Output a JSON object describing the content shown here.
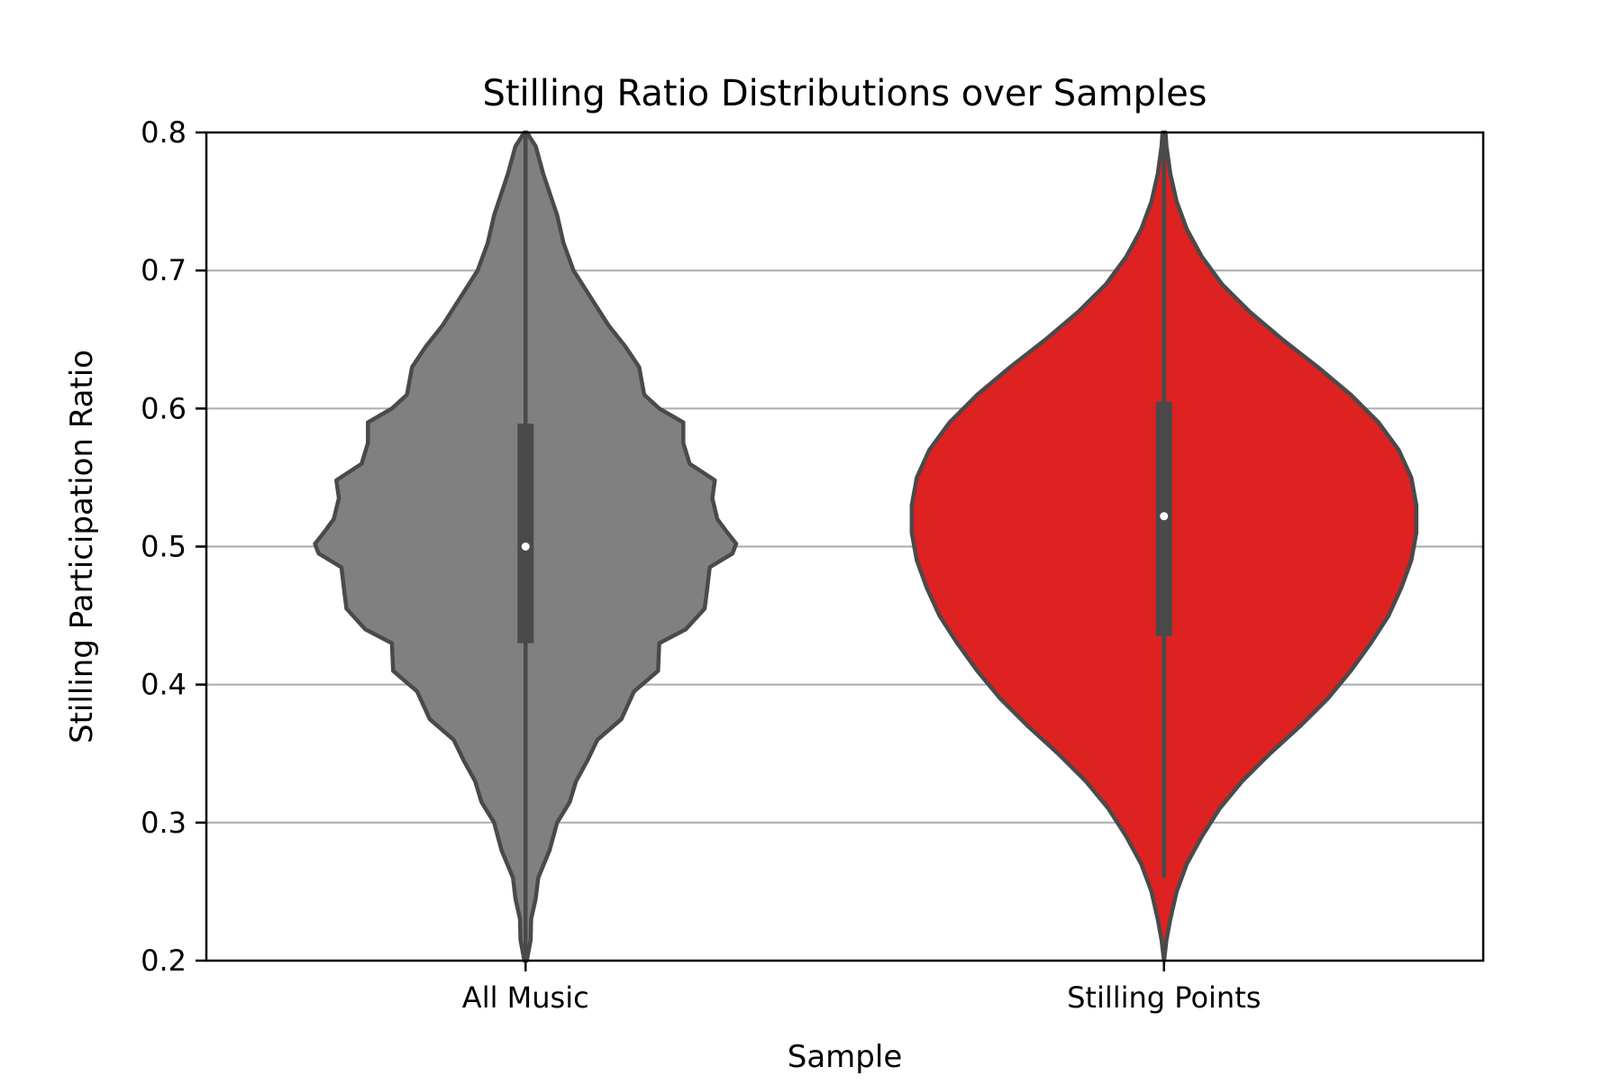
{
  "chart_data": {
    "type": "violin",
    "title": "Stilling Ratio Distributions over Samples",
    "xlabel": "Sample",
    "ylabel": "Stilling Participation Ratio",
    "ylim": [
      0.2,
      0.8
    ],
    "yticks": [
      0.2,
      0.3,
      0.4,
      0.5,
      0.6,
      0.7,
      0.8
    ],
    "ytick_labels": [
      "0.2",
      "0.3",
      "0.4",
      "0.5",
      "0.6",
      "0.7",
      "0.8"
    ],
    "grid": "horizontal",
    "categories": [
      "All Music",
      "Stilling Points"
    ],
    "series": [
      {
        "category": "All Music",
        "color": "#808080",
        "median": 0.5,
        "q1": 0.43,
        "q3": 0.589,
        "whisker_low": 0.2,
        "whisker_high": 0.8,
        "density_profile": [
          [
            0.2,
            0.005
          ],
          [
            0.215,
            0.02
          ],
          [
            0.23,
            0.022
          ],
          [
            0.245,
            0.04
          ],
          [
            0.26,
            0.05
          ],
          [
            0.28,
            0.095
          ],
          [
            0.3,
            0.125
          ],
          [
            0.315,
            0.175
          ],
          [
            0.33,
            0.2
          ],
          [
            0.345,
            0.245
          ],
          [
            0.36,
            0.285
          ],
          [
            0.375,
            0.38
          ],
          [
            0.395,
            0.43
          ],
          [
            0.41,
            0.525
          ],
          [
            0.43,
            0.53
          ],
          [
            0.44,
            0.635
          ],
          [
            0.455,
            0.71
          ],
          [
            0.47,
            0.72
          ],
          [
            0.485,
            0.73
          ],
          [
            0.495,
            0.82
          ],
          [
            0.502,
            0.835
          ],
          [
            0.51,
            0.8
          ],
          [
            0.52,
            0.76
          ],
          [
            0.535,
            0.74
          ],
          [
            0.548,
            0.75
          ],
          [
            0.56,
            0.65
          ],
          [
            0.575,
            0.625
          ],
          [
            0.59,
            0.625
          ],
          [
            0.6,
            0.53
          ],
          [
            0.61,
            0.47
          ],
          [
            0.63,
            0.45
          ],
          [
            0.645,
            0.395
          ],
          [
            0.66,
            0.33
          ],
          [
            0.68,
            0.26
          ],
          [
            0.7,
            0.19
          ],
          [
            0.72,
            0.15
          ],
          [
            0.74,
            0.125
          ],
          [
            0.77,
            0.07
          ],
          [
            0.79,
            0.04
          ],
          [
            0.8,
            0.005
          ]
        ]
      },
      {
        "category": "Stilling Points",
        "color": "#de2121",
        "median": 0.522,
        "q1": 0.435,
        "q3": 0.605,
        "whisker_low": 0.26,
        "whisker_high": 0.8,
        "density_profile": [
          [
            0.2,
            0.0
          ],
          [
            0.215,
            0.01
          ],
          [
            0.23,
            0.025
          ],
          [
            0.25,
            0.05
          ],
          [
            0.27,
            0.09
          ],
          [
            0.29,
            0.15
          ],
          [
            0.31,
            0.22
          ],
          [
            0.33,
            0.31
          ],
          [
            0.35,
            0.42
          ],
          [
            0.37,
            0.54
          ],
          [
            0.39,
            0.65
          ],
          [
            0.41,
            0.74
          ],
          [
            0.43,
            0.82
          ],
          [
            0.45,
            0.89
          ],
          [
            0.47,
            0.94
          ],
          [
            0.49,
            0.98
          ],
          [
            0.51,
            1.0
          ],
          [
            0.53,
            1.0
          ],
          [
            0.55,
            0.98
          ],
          [
            0.57,
            0.93
          ],
          [
            0.59,
            0.85
          ],
          [
            0.61,
            0.74
          ],
          [
            0.63,
            0.61
          ],
          [
            0.65,
            0.47
          ],
          [
            0.67,
            0.34
          ],
          [
            0.69,
            0.23
          ],
          [
            0.71,
            0.15
          ],
          [
            0.73,
            0.09
          ],
          [
            0.75,
            0.05
          ],
          [
            0.77,
            0.025
          ],
          [
            0.79,
            0.01
          ],
          [
            0.8,
            0.006
          ]
        ]
      }
    ]
  }
}
